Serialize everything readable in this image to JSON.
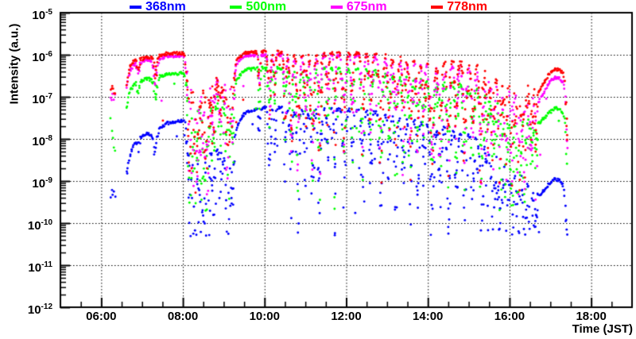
{
  "chart_data": {
    "type": "scatter",
    "title": "",
    "xlabel": "Time (JST)",
    "ylabel": "Intensity (a.u.)",
    "grid": "dotted",
    "legend_position": "top",
    "legend": [
      {
        "label": "368nm",
        "color": "#0000ff"
      },
      {
        "label": "500nm",
        "color": "#00ff00"
      },
      {
        "label": "675nm",
        "color": "#ff00ff"
      },
      {
        "label": "778nm",
        "color": "#ff0000"
      }
    ],
    "x_axis": {
      "start_hour": 5,
      "end_hour": 19,
      "major_tick_hours": [
        6,
        8,
        10,
        12,
        14,
        16,
        18
      ],
      "major_tick_labels": [
        "06:00",
        "08:00",
        "10:00",
        "12:00",
        "14:00",
        "16:00",
        "18:00"
      ],
      "minor_tick_interval_hours": 0.5
    },
    "y_axis": {
      "scale": "log",
      "min_exp": -12,
      "max_exp": -5,
      "tick_exponents": [
        -5,
        -6,
        -7,
        -8,
        -9,
        -10,
        -11,
        -12
      ]
    },
    "series": [
      {
        "name": "368nm",
        "color": "#0000ff",
        "marker": "dot",
        "floor_log10": -10.32,
        "stray_prob": 0.03,
        "stray_depth": 2.6,
        "window_mult": 1.35,
        "pre_cluster": {
          "t0": 6.23,
          "t1": 6.34,
          "log10": -9.35,
          "jitter": 0.4,
          "n": 5
        },
        "envelope_log10": [
          [
            6.64,
            -8.8
          ],
          [
            6.7,
            -8.4
          ],
          [
            6.78,
            -8.18
          ],
          [
            6.86,
            -8.02
          ],
          [
            7.0,
            -7.96
          ],
          [
            7.1,
            -7.86
          ],
          [
            7.25,
            -7.93
          ],
          [
            7.4,
            -7.79
          ],
          [
            7.6,
            -7.63
          ],
          [
            8.0,
            -7.56
          ],
          [
            8.1,
            -7.58
          ],
          [
            8.25,
            -7.82
          ],
          [
            8.5,
            -7.98
          ],
          [
            8.75,
            -8.04
          ],
          [
            9.0,
            -8.1
          ],
          [
            9.25,
            -7.9
          ],
          [
            9.4,
            -7.58
          ],
          [
            9.5,
            -7.38
          ],
          [
            10.0,
            -7.26
          ],
          [
            11.0,
            -7.28
          ],
          [
            12.0,
            -7.3
          ],
          [
            12.5,
            -7.34
          ],
          [
            13.0,
            -7.42
          ],
          [
            13.5,
            -7.49
          ],
          [
            14.0,
            -7.57
          ],
          [
            14.5,
            -7.67
          ],
          [
            15.0,
            -7.8
          ],
          [
            15.4,
            -7.97
          ],
          [
            15.7,
            -8.17
          ],
          [
            16.0,
            -8.37
          ],
          [
            16.4,
            -8.67
          ],
          [
            16.6,
            -8.85
          ],
          [
            16.74,
            -9.35
          ],
          [
            16.95,
            -9.1
          ],
          [
            17.1,
            -8.95
          ],
          [
            17.22,
            -8.98
          ],
          [
            17.32,
            -9.1
          ],
          [
            17.42,
            -10.05
          ]
        ]
      },
      {
        "name": "500nm",
        "color": "#00ff00",
        "marker": "dot",
        "floor_log10": -9.75,
        "stray_prob": 0.015,
        "stray_depth": 2.2,
        "window_mult": 1.0,
        "pre_cluster": {
          "t0": 6.23,
          "t1": 6.34,
          "log10": -7.9,
          "jitter": 0.55,
          "n": 5
        },
        "envelope_log10": [
          [
            6.62,
            -7.28
          ],
          [
            6.7,
            -6.88
          ],
          [
            6.78,
            -6.74
          ],
          [
            6.86,
            -6.64
          ],
          [
            7.0,
            -6.62
          ],
          [
            7.1,
            -6.56
          ],
          [
            7.25,
            -6.6
          ],
          [
            7.4,
            -6.53
          ],
          [
            7.6,
            -6.46
          ],
          [
            8.0,
            -6.44
          ],
          [
            8.1,
            -6.46
          ],
          [
            8.25,
            -6.68
          ],
          [
            8.5,
            -6.82
          ],
          [
            8.75,
            -6.87
          ],
          [
            9.0,
            -6.92
          ],
          [
            9.25,
            -6.74
          ],
          [
            9.4,
            -6.5
          ],
          [
            9.5,
            -6.36
          ],
          [
            10.0,
            -6.31
          ],
          [
            11.0,
            -6.33
          ],
          [
            12.0,
            -6.34
          ],
          [
            12.5,
            -6.37
          ],
          [
            13.0,
            -6.44
          ],
          [
            13.5,
            -6.49
          ],
          [
            14.0,
            -6.55
          ],
          [
            14.5,
            -6.6
          ],
          [
            15.0,
            -6.65
          ],
          [
            15.4,
            -6.74
          ],
          [
            15.7,
            -6.9
          ],
          [
            16.0,
            -7.02
          ],
          [
            16.4,
            -7.2
          ],
          [
            16.6,
            -7.32
          ],
          [
            16.74,
            -7.62
          ],
          [
            16.95,
            -7.4
          ],
          [
            17.1,
            -7.27
          ],
          [
            17.22,
            -7.29
          ],
          [
            17.32,
            -7.4
          ],
          [
            17.42,
            -7.88
          ]
        ]
      },
      {
        "name": "675nm",
        "color": "#ff00ff",
        "marker": "dot",
        "floor_log10": -9.45,
        "stray_prob": 0.02,
        "stray_depth": 2.0,
        "window_mult": 1.15,
        "pre_cluster": {
          "t0": 6.23,
          "t1": 6.34,
          "log10": -6.97,
          "jitter": 0.12,
          "n": 5
        },
        "envelope_log10": [
          [
            6.62,
            -6.8
          ],
          [
            6.7,
            -6.38
          ],
          [
            6.78,
            -6.26
          ],
          [
            6.86,
            -6.18
          ],
          [
            7.0,
            -6.18
          ],
          [
            7.1,
            -6.13
          ],
          [
            7.25,
            -6.16
          ],
          [
            7.4,
            -6.1
          ],
          [
            7.6,
            -6.04
          ],
          [
            8.0,
            -6.03
          ],
          [
            8.1,
            -6.05
          ],
          [
            8.25,
            -6.27
          ],
          [
            8.5,
            -6.42
          ],
          [
            8.75,
            -6.47
          ],
          [
            9.0,
            -6.52
          ],
          [
            9.25,
            -6.32
          ],
          [
            9.4,
            -6.12
          ],
          [
            9.5,
            -6.02
          ],
          [
            10.0,
            -6.0
          ],
          [
            11.0,
            -6.01
          ],
          [
            12.0,
            -6.02
          ],
          [
            12.5,
            -6.04
          ],
          [
            13.0,
            -6.09
          ],
          [
            13.5,
            -6.13
          ],
          [
            14.0,
            -6.17
          ],
          [
            14.5,
            -6.21
          ],
          [
            15.0,
            -6.26
          ],
          [
            15.4,
            -6.34
          ],
          [
            15.7,
            -6.48
          ],
          [
            16.0,
            -6.6
          ],
          [
            16.4,
            -6.76
          ],
          [
            16.6,
            -6.88
          ],
          [
            16.74,
            -7.08
          ],
          [
            16.95,
            -6.7
          ],
          [
            17.1,
            -6.55
          ],
          [
            17.22,
            -6.56
          ],
          [
            17.32,
            -6.66
          ],
          [
            17.42,
            -7.25
          ]
        ]
      },
      {
        "name": "778nm",
        "color": "#ff0000",
        "marker": "dot",
        "floor_log10": -9.3,
        "stray_prob": 0.015,
        "stray_depth": 2.0,
        "window_mult": 1.0,
        "pre_cluster": {
          "t0": 6.23,
          "t1": 6.34,
          "log10": -6.83,
          "jitter": 0.1,
          "n": 6
        },
        "envelope_log10": [
          [
            6.62,
            -6.72
          ],
          [
            6.7,
            -6.3
          ],
          [
            6.78,
            -6.18
          ],
          [
            6.86,
            -6.1
          ],
          [
            7.0,
            -6.1
          ],
          [
            7.1,
            -6.05
          ],
          [
            7.25,
            -6.08
          ],
          [
            7.4,
            -6.02
          ],
          [
            7.6,
            -5.97
          ],
          [
            8.0,
            -5.96
          ],
          [
            8.1,
            -5.98
          ],
          [
            8.25,
            -6.2
          ],
          [
            8.5,
            -6.35
          ],
          [
            8.75,
            -6.4
          ],
          [
            9.0,
            -6.45
          ],
          [
            9.25,
            -6.25
          ],
          [
            9.4,
            -6.05
          ],
          [
            9.5,
            -5.95
          ],
          [
            10.0,
            -5.93
          ],
          [
            11.0,
            -5.94
          ],
          [
            12.0,
            -5.95
          ],
          [
            12.5,
            -5.97
          ],
          [
            13.0,
            -6.02
          ],
          [
            13.5,
            -6.05
          ],
          [
            14.0,
            -6.08
          ],
          [
            14.5,
            -6.1
          ],
          [
            15.0,
            -6.12
          ],
          [
            15.4,
            -6.18
          ],
          [
            15.7,
            -6.3
          ],
          [
            16.0,
            -6.4
          ],
          [
            16.4,
            -6.52
          ],
          [
            16.6,
            -6.62
          ],
          [
            16.74,
            -6.88
          ],
          [
            16.95,
            -6.48
          ],
          [
            17.1,
            -6.35
          ],
          [
            17.22,
            -6.36
          ],
          [
            17.32,
            -6.45
          ],
          [
            17.42,
            -7.05
          ]
        ]
      }
    ],
    "cloud_events": [
      [
        6.9,
        0.03,
        0.3
      ],
      [
        7.33,
        0.04,
        0.55
      ],
      [
        8.17,
        0.05,
        2.6
      ],
      [
        8.3,
        0.05,
        3.1
      ],
      [
        8.45,
        0.055,
        2.4
      ],
      [
        8.6,
        0.05,
        2.9
      ],
      [
        8.75,
        0.04,
        1.7
      ],
      [
        8.92,
        0.04,
        1.2
      ],
      [
        9.1,
        0.05,
        2.3
      ],
      [
        9.22,
        0.03,
        1.6
      ],
      [
        9.87,
        0.02,
        0.9
      ],
      [
        10.12,
        0.03,
        1.6
      ],
      [
        10.25,
        0.02,
        1.3
      ],
      [
        10.5,
        0.025,
        1.7
      ],
      [
        10.65,
        0.03,
        2.4
      ],
      [
        10.82,
        0.035,
        2.9
      ],
      [
        11.0,
        0.03,
        1.7
      ],
      [
        11.17,
        0.035,
        2.6
      ],
      [
        11.35,
        0.03,
        3.0
      ],
      [
        11.55,
        0.025,
        1.9
      ],
      [
        11.72,
        0.02,
        2.9
      ],
      [
        11.95,
        0.035,
        2.5
      ],
      [
        12.15,
        0.025,
        1.6
      ],
      [
        12.4,
        0.03,
        2.7
      ],
      [
        12.6,
        0.03,
        1.9
      ],
      [
        12.85,
        0.035,
        3.0
      ],
      [
        13.05,
        0.03,
        1.9
      ],
      [
        13.22,
        0.035,
        2.6
      ],
      [
        13.4,
        0.03,
        2.1
      ],
      [
        13.57,
        0.035,
        2.7
      ],
      [
        13.75,
        0.03,
        2.0
      ],
      [
        13.9,
        0.03,
        1.6
      ],
      [
        14.1,
        0.045,
        2.9
      ],
      [
        14.3,
        0.04,
        2.3
      ],
      [
        14.5,
        0.035,
        2.7
      ],
      [
        14.7,
        0.035,
        1.9
      ],
      [
        14.9,
        0.04,
        2.5
      ],
      [
        15.1,
        0.035,
        2.1
      ],
      [
        15.3,
        0.04,
        2.7
      ],
      [
        15.45,
        0.03,
        2.0
      ],
      [
        15.6,
        0.045,
        2.4
      ],
      [
        15.77,
        0.04,
        2.8
      ],
      [
        15.92,
        0.04,
        2.1
      ],
      [
        16.07,
        0.045,
        2.5
      ],
      [
        16.22,
        0.04,
        2.6
      ],
      [
        16.37,
        0.04,
        2.3
      ],
      [
        16.52,
        0.035,
        2.0
      ],
      [
        16.64,
        0.03,
        1.6
      ],
      [
        17.41,
        0.02,
        1.0
      ]
    ],
    "noisy_windows": [
      [
        8.1,
        9.32,
        0.13,
        2.9
      ],
      [
        9.55,
        10.4,
        0.03,
        1.8
      ],
      [
        10.4,
        13.0,
        0.1,
        2.7
      ],
      [
        13.0,
        15.5,
        0.15,
        2.9
      ],
      [
        15.5,
        16.72,
        0.22,
        3.1
      ]
    ],
    "outliers": [
      {
        "series": "368nm",
        "t": 11.72,
        "log10": -10.29
      }
    ],
    "data_start_hour": 6.62,
    "data_end_hour": 17.42,
    "sample_step_hours": 0.017
  }
}
